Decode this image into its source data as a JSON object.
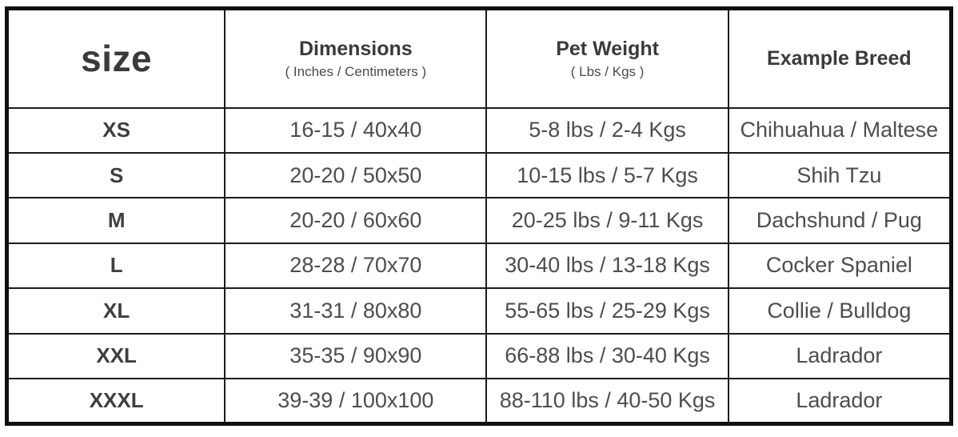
{
  "table": {
    "columns": [
      {
        "label": "size",
        "sublabel": ""
      },
      {
        "label": "Dimensions",
        "sublabel": "( Inches / Centimeters )"
      },
      {
        "label": "Pet Weight",
        "sublabel": "( Lbs / Kgs )"
      },
      {
        "label": "Example Breed",
        "sublabel": ""
      }
    ],
    "rows": [
      {
        "size": "XS",
        "dimensions": "16-15 / 40x40",
        "weight": "5-8 lbs / 2-4 Kgs",
        "breed": "Chihuahua / Maltese"
      },
      {
        "size": "S",
        "dimensions": "20-20 / 50x50",
        "weight": "10-15 lbs / 5-7 Kgs",
        "breed": "Shih Tzu"
      },
      {
        "size": "M",
        "dimensions": "20-20 / 60x60",
        "weight": "20-25 lbs / 9-11 Kgs",
        "breed": "Dachshund / Pug"
      },
      {
        "size": "L",
        "dimensions": "28-28 / 70x70",
        "weight": "30-40 lbs / 13-18 Kgs",
        "breed": "Cocker Spaniel"
      },
      {
        "size": "XL",
        "dimensions": "31-31 / 80x80",
        "weight": "55-65 lbs / 25-29 Kgs",
        "breed": "Collie / Bulldog"
      },
      {
        "size": "XXL",
        "dimensions": "35-35 / 90x90",
        "weight": "66-88 lbs / 30-40 Kgs",
        "breed": "Ladrador"
      },
      {
        "size": "XXXL",
        "dimensions": "39-39 / 100x100",
        "weight": "88-110 lbs / 40-50 Kgs",
        "breed": "Ladrador"
      }
    ]
  },
  "colors": {
    "border": "#0f0f0f",
    "grid_line": "#1c1c1c",
    "header_text": "#3a3a3a",
    "body_text": "#4d4d4d",
    "background": "#ffffff"
  }
}
